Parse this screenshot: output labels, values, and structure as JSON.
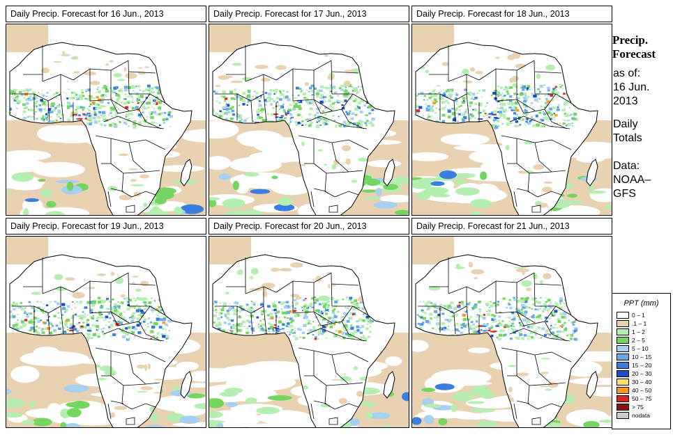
{
  "panels": [
    {
      "title": "Daily Precip. Forecast for  16 Jun., 2013"
    },
    {
      "title": "Daily Precip. Forecast for  17 Jun., 2013"
    },
    {
      "title": "Daily Precip. Forecast for  18 Jun., 2013"
    },
    {
      "title": "Daily Precip. Forecast for  19 Jun., 2013"
    },
    {
      "title": "Daily Precip. Forecast for  20 Jun., 2013"
    },
    {
      "title": "Daily Precip. Forecast for  21 Jun., 2013"
    }
  ],
  "side": {
    "title_line1": "Precip.",
    "title_line2": "Forecast",
    "asof_label": "as of:",
    "asof_date1": "16 Jun.",
    "asof_date2": "2013",
    "totals1": "Daily",
    "totals2": "Totals",
    "data_label": "Data:",
    "data_source1": "NOAA–",
    "data_source2": "GFS"
  },
  "legend": {
    "title": "PPT (mm)",
    "entries": [
      {
        "label": "0 – 1",
        "color": "#ffffff"
      },
      {
        "label": ".1 – 1",
        "color": "#e8d2b2"
      },
      {
        "label": "1 – 2",
        "color": "#b4eeb0"
      },
      {
        "label": "2 – 5",
        "color": "#74d660"
      },
      {
        "label": "5 – 10",
        "color": "#a6d0f0"
      },
      {
        "label": "10 – 15",
        "color": "#66a9e6"
      },
      {
        "label": "15 – 20",
        "color": "#3a7fde"
      },
      {
        "label": "20 – 30",
        "color": "#1a4fc8"
      },
      {
        "label": "30 – 40",
        "color": "#fde06a"
      },
      {
        "label": "40 – 50",
        "color": "#fb9a1c"
      },
      {
        "label": "50 – 75",
        "color": "#e2201c"
      },
      {
        "label": "> 75",
        "color": "#8a1414"
      },
      {
        "label": "nodata",
        "color": "#cccccc"
      }
    ]
  }
}
